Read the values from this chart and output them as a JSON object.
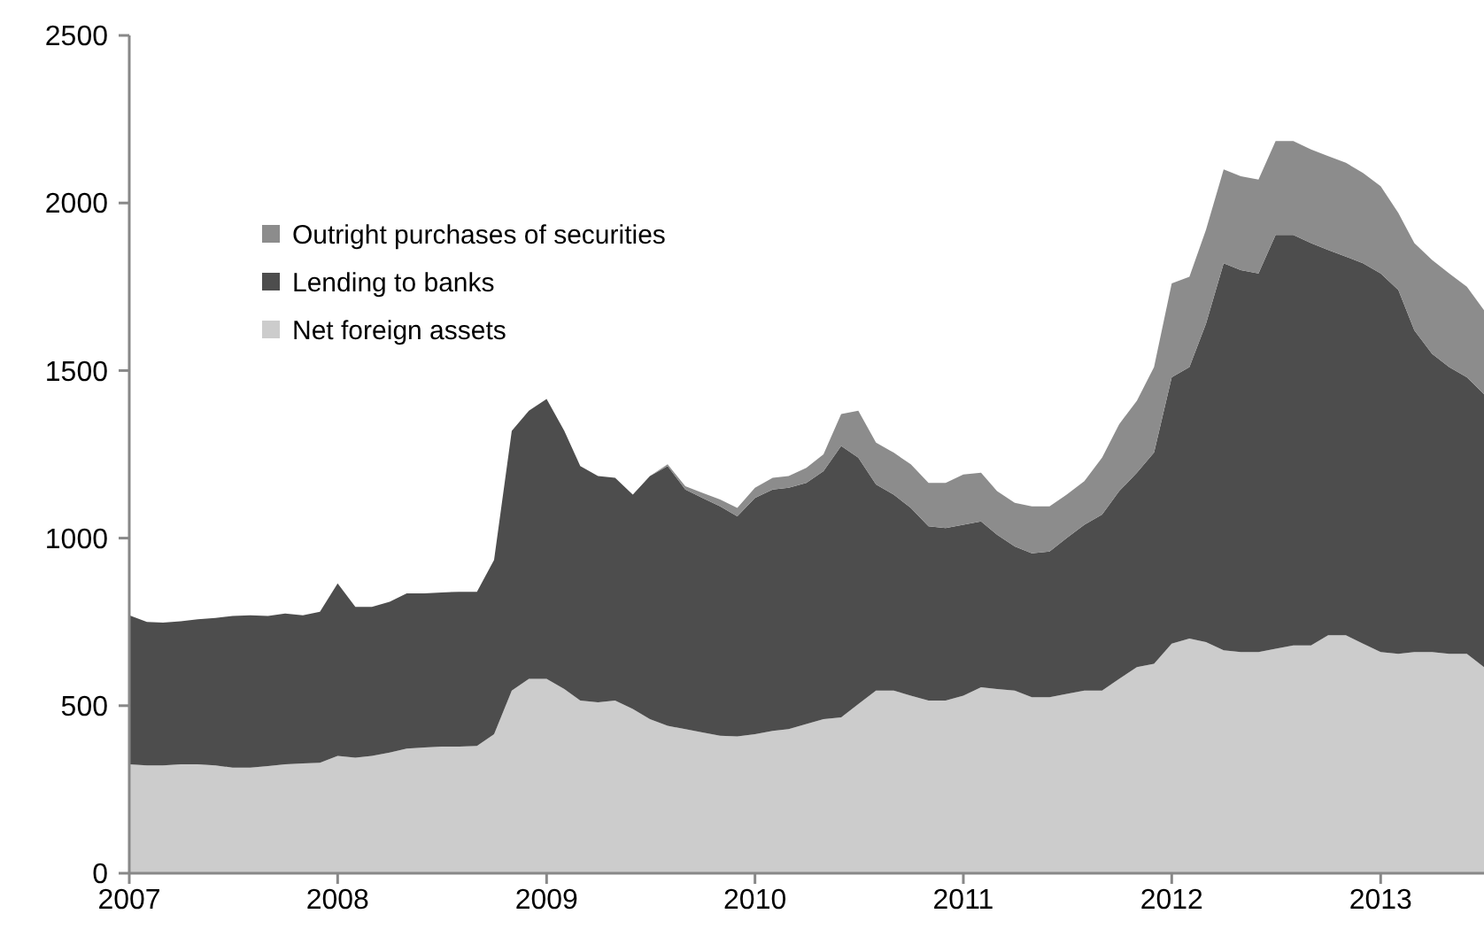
{
  "chart_data": {
    "type": "area",
    "stacked": true,
    "legend": "top left",
    "grid": false,
    "x": [
      "2007-01",
      "2007-02",
      "2007-03",
      "2007-04",
      "2007-05",
      "2007-06",
      "2007-07",
      "2007-08",
      "2007-09",
      "2007-10",
      "2007-11",
      "2007-12",
      "2008-01",
      "2008-02",
      "2008-03",
      "2008-04",
      "2008-05",
      "2008-06",
      "2008-07",
      "2008-08",
      "2008-09",
      "2008-10",
      "2008-11",
      "2008-12",
      "2009-01",
      "2009-02",
      "2009-03",
      "2009-04",
      "2009-05",
      "2009-06",
      "2009-07",
      "2009-08",
      "2009-09",
      "2009-10",
      "2009-11",
      "2009-12",
      "2010-01",
      "2010-02",
      "2010-03",
      "2010-04",
      "2010-05",
      "2010-06",
      "2010-07",
      "2010-08",
      "2010-09",
      "2010-10",
      "2010-11",
      "2010-12",
      "2011-01",
      "2011-02",
      "2011-03",
      "2011-04",
      "2011-05",
      "2011-06",
      "2011-07",
      "2011-08",
      "2011-09",
      "2011-10",
      "2011-11",
      "2011-12",
      "2012-01",
      "2012-02",
      "2012-03",
      "2012-04",
      "2012-05",
      "2012-06",
      "2012-07",
      "2012-08",
      "2012-09",
      "2012-10",
      "2012-11",
      "2012-12",
      "2013-01",
      "2013-02",
      "2013-03",
      "2013-04",
      "2013-05",
      "2013-06",
      "2013-07"
    ],
    "xlim": [
      "2007-01",
      "2013-07"
    ],
    "xticks": [
      "2007",
      "2008",
      "2009",
      "2010",
      "2011",
      "2012",
      "2013"
    ],
    "ylim": [
      0,
      2500
    ],
    "yticks": [
      0,
      500,
      1000,
      1500,
      2000,
      2500
    ],
    "series": [
      {
        "name": "Net foreign assets",
        "color": "#cccccc",
        "values": [
          325,
          322,
          322,
          325,
          325,
          322,
          315,
          315,
          320,
          325,
          328,
          330,
          350,
          345,
          350,
          360,
          372,
          375,
          378,
          378,
          380,
          415,
          545,
          580,
          580,
          550,
          515,
          510,
          515,
          490,
          460,
          440,
          430,
          420,
          410,
          408,
          415,
          425,
          430,
          445,
          460,
          465,
          505,
          545,
          545,
          530,
          515,
          515,
          530,
          555,
          550,
          545,
          525,
          525,
          535,
          545,
          545,
          580,
          615,
          625,
          685,
          700,
          690,
          665,
          660,
          660,
          670,
          680,
          680,
          710,
          710,
          685,
          660,
          655,
          660,
          660,
          655,
          655,
          615
        ]
      },
      {
        "name": "Lending to banks",
        "color": "#4d4d4d",
        "values": [
          445,
          428,
          426,
          427,
          433,
          440,
          453,
          455,
          448,
          450,
          442,
          450,
          515,
          450,
          445,
          450,
          463,
          460,
          460,
          462,
          460,
          520,
          775,
          800,
          835,
          770,
          700,
          675,
          665,
          640,
          725,
          775,
          715,
          700,
          685,
          657,
          705,
          720,
          720,
          720,
          740,
          810,
          735,
          615,
          585,
          560,
          520,
          515,
          510,
          495,
          460,
          430,
          430,
          435,
          465,
          495,
          525,
          560,
          580,
          630,
          795,
          810,
          950,
          1155,
          1140,
          1130,
          1235,
          1225,
          1200,
          1150,
          1130,
          1135,
          1130,
          1085,
          960,
          890,
          855,
          825,
          815
        ]
      },
      {
        "name": "Outright purchases of securities",
        "color": "#8c8c8c",
        "values": [
          0,
          0,
          0,
          0,
          0,
          0,
          0,
          0,
          0,
          0,
          0,
          0,
          0,
          0,
          0,
          0,
          0,
          0,
          0,
          0,
          0,
          0,
          0,
          0,
          0,
          0,
          0,
          0,
          0,
          0,
          0,
          5,
          10,
          15,
          20,
          25,
          30,
          35,
          35,
          45,
          50,
          95,
          140,
          125,
          125,
          130,
          130,
          135,
          150,
          145,
          130,
          130,
          140,
          135,
          130,
          130,
          170,
          200,
          215,
          255,
          280,
          270,
          280,
          280,
          280,
          280,
          280,
          280,
          280,
          280,
          280,
          270,
          260,
          230,
          260,
          280,
          280,
          270,
          250
        ]
      }
    ]
  }
}
